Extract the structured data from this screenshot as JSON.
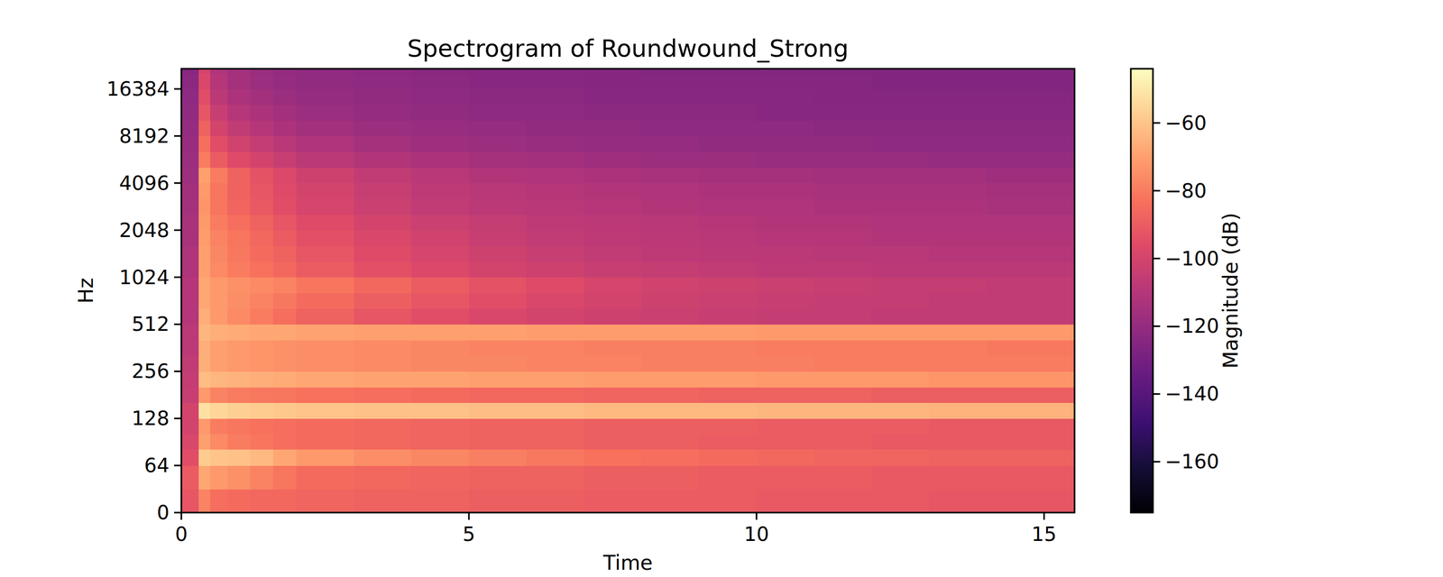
{
  "chart_data": {
    "type": "heatmap",
    "title": "Spectrogram of Roundwound_Strong",
    "x_label": "Time",
    "y_label": "Hz",
    "log": "y",
    "xlim": [
      0,
      15.53
    ],
    "ylim": [
      0,
      22050
    ],
    "xticks": [
      0,
      5,
      10,
      15
    ],
    "yticks": [
      0,
      64,
      128,
      256,
      512,
      1024,
      2048,
      4096,
      8192,
      16384
    ],
    "time_edges": [
      0,
      0.3,
      0.5,
      0.8,
      1.2,
      1.6,
      2,
      3,
      4,
      5,
      6,
      7,
      8,
      9,
      10,
      11,
      12,
      13,
      14,
      15,
      15.53
    ],
    "freq_edges": [
      0,
      32,
      64,
      81,
      102,
      128,
      161,
      203,
      256,
      323,
      406,
      512,
      645,
      813,
      1024,
      1290,
      1625,
      2048,
      2580,
      3251,
      4096,
      5161,
      6502,
      8192,
      10321,
      13004,
      16384,
      20643,
      22050
    ],
    "cells": [
      [
        -92,
        -78,
        -84,
        -85,
        -86,
        -86,
        -87,
        -88,
        -88,
        -89,
        -89,
        -90,
        -90,
        -90,
        -91,
        -91,
        -91,
        -92,
        -92,
        -92
      ],
      [
        -90,
        -68,
        -72,
        -74,
        -78,
        -82,
        -85,
        -86,
        -87,
        -88,
        -88,
        -89,
        -89,
        -90,
        -90,
        -90,
        -91,
        -91,
        -91,
        -91
      ],
      [
        -95,
        -58,
        -60,
        -61,
        -63,
        -68,
        -72,
        -75,
        -77,
        -79,
        -81,
        -83,
        -84,
        -85,
        -86,
        -87,
        -87,
        -88,
        -88,
        -88
      ],
      [
        -98,
        -70,
        -76,
        -80,
        -82,
        -84,
        -85,
        -86,
        -87,
        -88,
        -88,
        -89,
        -89,
        -90,
        -90,
        -90,
        -91,
        -91,
        -91,
        -91
      ],
      [
        -100,
        -72,
        -80,
        -82,
        -83,
        -84,
        -85,
        -86,
        -87,
        -88,
        -88,
        -89,
        -89,
        -89,
        -90,
        -90,
        -90,
        -91,
        -91,
        -91
      ],
      [
        -100,
        -52,
        -55,
        -57,
        -58,
        -59,
        -60,
        -61,
        -61,
        -62,
        -62,
        -63,
        -63,
        -63,
        -64,
        -64,
        -64,
        -65,
        -65,
        -65
      ],
      [
        -104,
        -72,
        -78,
        -80,
        -81,
        -82,
        -83,
        -84,
        -85,
        -86,
        -86,
        -87,
        -87,
        -88,
        -88,
        -88,
        -89,
        -89,
        -89,
        -89
      ],
      [
        -105,
        -62,
        -64,
        -65,
        -66,
        -67,
        -68,
        -69,
        -69,
        -70,
        -70,
        -71,
        -71,
        -71,
        -72,
        -72,
        -72,
        -73,
        -73,
        -73
      ],
      [
        -106,
        -66,
        -70,
        -72,
        -73,
        -74,
        -75,
        -76,
        -77,
        -77,
        -78,
        -78,
        -79,
        -79,
        -79,
        -80,
        -80,
        -80,
        -80,
        -80
      ],
      [
        -108,
        -66,
        -70,
        -72,
        -73,
        -74,
        -75,
        -76,
        -77,
        -78,
        -78,
        -79,
        -79,
        -79,
        -80,
        -80,
        -80,
        -80,
        -81,
        -81
      ],
      [
        -108,
        -64,
        -66,
        -67,
        -68,
        -68,
        -69,
        -70,
        -70,
        -70,
        -71,
        -71,
        -71,
        -71,
        -72,
        -72,
        -72,
        -72,
        -72,
        -72
      ],
      [
        -110,
        -66,
        -72,
        -76,
        -80,
        -84,
        -88,
        -92,
        -95,
        -98,
        -100,
        -102,
        -103,
        -104,
        -105,
        -105,
        -106,
        -106,
        -106,
        -106
      ],
      [
        -110,
        -68,
        -72,
        -75,
        -78,
        -81,
        -85,
        -89,
        -92,
        -95,
        -98,
        -100,
        -102,
        -103,
        -104,
        -105,
        -105,
        -106,
        -106,
        -106
      ],
      [
        -110,
        -68,
        -72,
        -74,
        -76,
        -78,
        -82,
        -86,
        -90,
        -93,
        -96,
        -99,
        -101,
        -102,
        -103,
        -104,
        -105,
        -105,
        -106,
        -106
      ],
      [
        -112,
        -70,
        -76,
        -80,
        -83,
        -86,
        -90,
        -94,
        -97,
        -100,
        -102,
        -104,
        -105,
        -106,
        -107,
        -107,
        -108,
        -108,
        -108,
        -108
      ],
      [
        -112,
        -70,
        -77,
        -81,
        -85,
        -88,
        -92,
        -96,
        -99,
        -102,
        -104,
        -106,
        -107,
        -108,
        -108,
        -109,
        -109,
        -110,
        -110,
        -110
      ],
      [
        -114,
        -71,
        -78,
        -82,
        -86,
        -90,
        -94,
        -98,
        -101,
        -104,
        -106,
        -107,
        -108,
        -109,
        -110,
        -110,
        -111,
        -111,
        -111,
        -111
      ],
      [
        -114,
        -72,
        -80,
        -84,
        -88,
        -92,
        -96,
        -100,
        -103,
        -105,
        -107,
        -108,
        -109,
        -110,
        -111,
        -111,
        -112,
        -112,
        -112,
        -112
      ],
      [
        -115,
        -73,
        -82,
        -87,
        -91,
        -95,
        -99,
        -103,
        -106,
        -108,
        -109,
        -110,
        -111,
        -112,
        -112,
        -113,
        -113,
        -113,
        -114,
        -114
      ],
      [
        -116,
        -72,
        -82,
        -88,
        -92,
        -96,
        -100,
        -104,
        -107,
        -109,
        -110,
        -111,
        -112,
        -113,
        -113,
        -114,
        -114,
        -114,
        -115,
        -115
      ],
      [
        -117,
        -70,
        -80,
        -88,
        -93,
        -97,
        -102,
        -106,
        -109,
        -111,
        -112,
        -113,
        -114,
        -115,
        -115,
        -116,
        -116,
        -116,
        -117,
        -117
      ],
      [
        -118,
        -80,
        -90,
        -96,
        -100,
        -104,
        -108,
        -111,
        -113,
        -115,
        -116,
        -117,
        -118,
        -118,
        -119,
        -119,
        -119,
        -120,
        -120,
        -120
      ],
      [
        -119,
        -84,
        -95,
        -101,
        -105,
        -109,
        -112,
        -115,
        -117,
        -118,
        -119,
        -120,
        -120,
        -121,
        -121,
        -121,
        -122,
        -122,
        -122,
        -122
      ],
      [
        -120,
        -88,
        -100,
        -106,
        -110,
        -113,
        -116,
        -118,
        -119,
        -120,
        -121,
        -121,
        -122,
        -122,
        -122,
        -123,
        -123,
        -123,
        -123,
        -123
      ],
      [
        -121,
        -92,
        -104,
        -110,
        -113,
        -116,
        -118,
        -120,
        -121,
        -122,
        -122,
        -123,
        -123,
        -123,
        -124,
        -124,
        -124,
        -124,
        -124,
        -124
      ],
      [
        -122,
        -95,
        -108,
        -113,
        -116,
        -118,
        -120,
        -121,
        -122,
        -123,
        -123,
        -124,
        -124,
        -124,
        -124,
        -125,
        -125,
        -125,
        -125,
        -125
      ],
      [
        -123,
        -98,
        -110,
        -115,
        -118,
        -120,
        -121,
        -122,
        -123,
        -124,
        -124,
        -125,
        -125,
        -125,
        -125,
        -125,
        -126,
        -126,
        -126,
        -126
      ],
      [
        -124,
        -100,
        -112,
        -116,
        -119,
        -121,
        -122,
        -123,
        -124,
        -125,
        -125,
        -125,
        -126,
        -126,
        -126,
        -126,
        -126,
        -126,
        -126,
        -126
      ]
    ],
    "colorbar": {
      "label": "Magnitude (dB)",
      "range": [
        -175,
        -44
      ],
      "ticks": [
        -160,
        -140,
        -120,
        -100,
        -80,
        -60
      ]
    }
  }
}
